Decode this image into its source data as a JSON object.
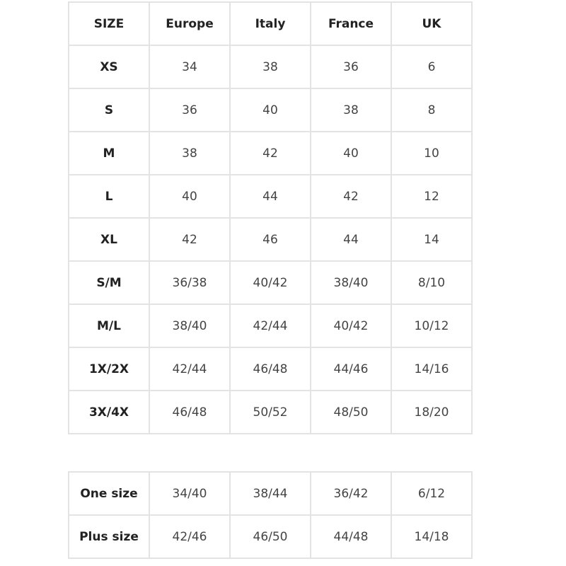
{
  "size_table": {
    "headers": [
      "SIZE",
      "Europe",
      "Italy",
      "France",
      "UK"
    ],
    "rows": [
      [
        "XS",
        "34",
        "38",
        "36",
        "6"
      ],
      [
        "S",
        "36",
        "40",
        "38",
        "8"
      ],
      [
        "M",
        "38",
        "42",
        "40",
        "10"
      ],
      [
        "L",
        "40",
        "44",
        "42",
        "12"
      ],
      [
        "XL",
        "42",
        "46",
        "44",
        "14"
      ],
      [
        "S/M",
        "36/38",
        "40/42",
        "38/40",
        "8/10"
      ],
      [
        "M/L",
        "38/40",
        "42/44",
        "40/42",
        "10/12"
      ],
      [
        "1X/2X",
        "42/44",
        "46/48",
        "44/46",
        "14/16"
      ],
      [
        "3X/4X",
        "46/48",
        "50/52",
        "48/50",
        "18/20"
      ]
    ]
  },
  "special_table": {
    "rows": [
      [
        "One size",
        "34/40",
        "38/44",
        "36/42",
        "6/12"
      ],
      [
        "Plus size",
        "42/46",
        "46/50",
        "44/48",
        "14/18"
      ]
    ]
  }
}
